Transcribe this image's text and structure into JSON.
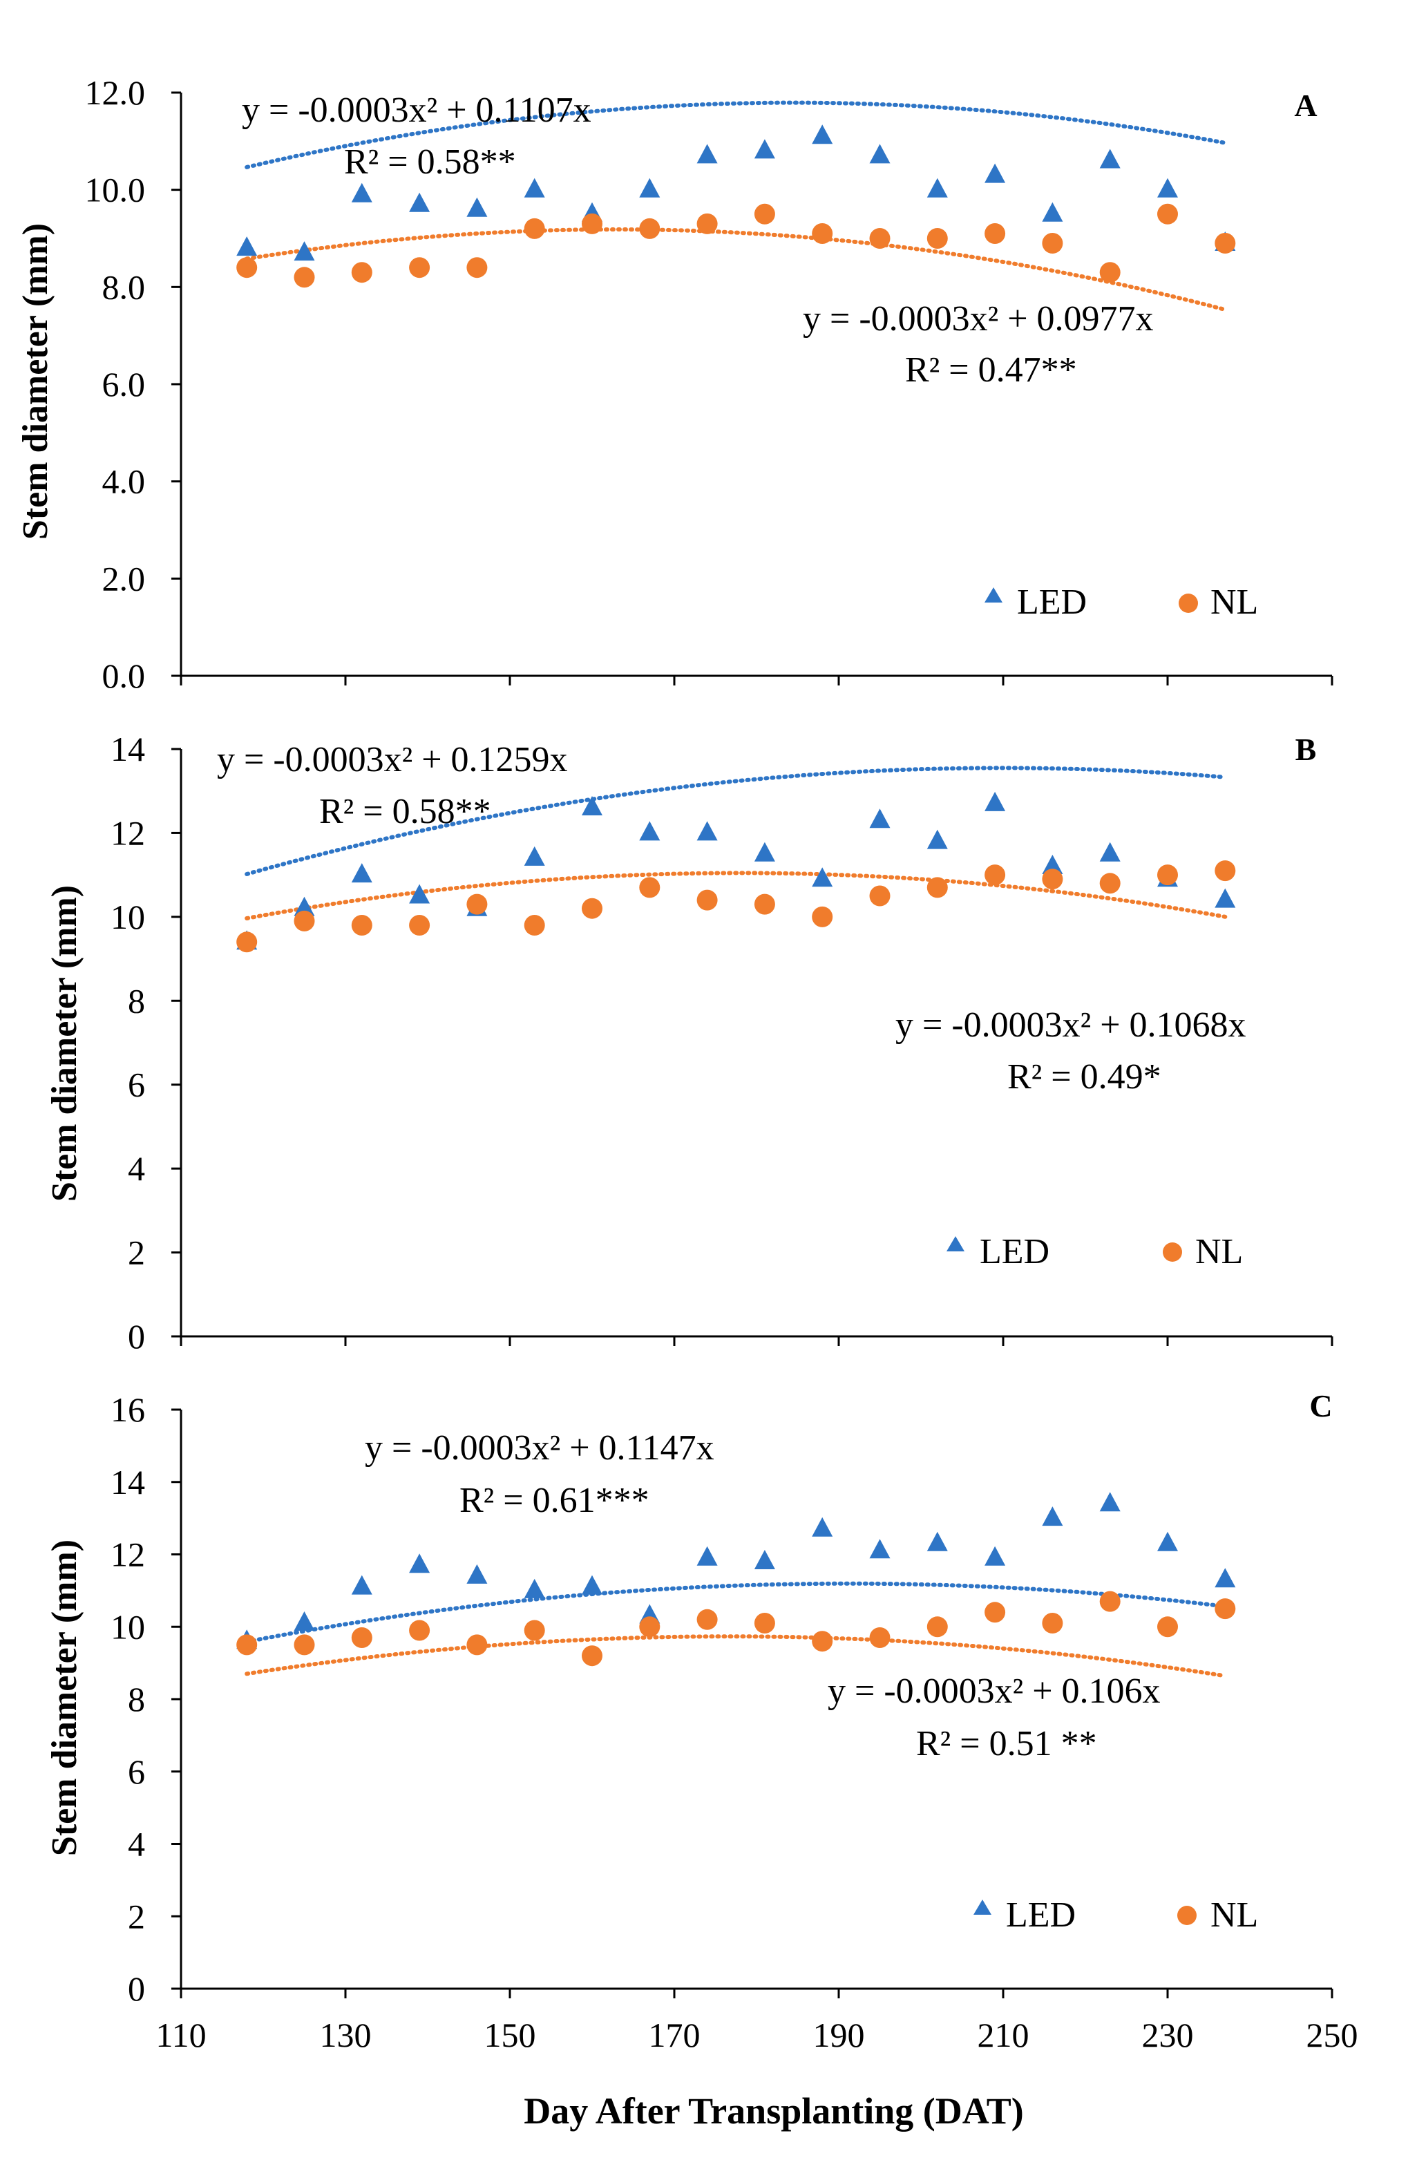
{
  "colors": {
    "led": "#2e75c6",
    "nl": "#f07c2c",
    "axis": "#000000"
  },
  "figure": {
    "xlabel": "Day After Transplanting (DAT)"
  },
  "chart_data": [
    {
      "type": "scatter",
      "panel": "A",
      "title": "",
      "xlabel": "",
      "ylabel": "Stem diameter (mm)",
      "xlim": [
        110,
        250
      ],
      "ylim": [
        0,
        12
      ],
      "yticks": [
        "0.0",
        "2.0",
        "4.0",
        "6.0",
        "8.0",
        "10.0",
        "12.0"
      ],
      "x": [
        118,
        125,
        132,
        139,
        146,
        153,
        160,
        167,
        174,
        181,
        188,
        195,
        202,
        209,
        216,
        223,
        230,
        237
      ],
      "series": [
        {
          "name": "LED",
          "marker": "triangle",
          "values": [
            8.8,
            8.7,
            9.9,
            9.7,
            9.6,
            10.0,
            9.5,
            10.0,
            10.7,
            10.8,
            11.1,
            10.7,
            10.0,
            10.3,
            9.5,
            10.6,
            10.0,
            8.9
          ],
          "trendline": {
            "a": -0.0003,
            "b": 0.1107,
            "c": 1.58,
            "equation": "y = -0.0003x² + 0.1107x",
            "r2": "R² = 0.58**"
          }
        },
        {
          "name": "NL",
          "marker": "circle",
          "values": [
            8.4,
            8.2,
            8.3,
            8.4,
            8.4,
            9.2,
            9.3,
            9.2,
            9.3,
            9.5,
            9.1,
            9.0,
            9.0,
            9.1,
            8.9,
            8.3,
            9.5,
            8.9
          ],
          "trendline": {
            "a": -0.0003,
            "b": 0.0977,
            "c": 1.23,
            "equation": "y = -0.0003x² + 0.0977x",
            "r2": "R² = 0.47**"
          }
        }
      ],
      "legend": [
        "LED",
        "NL"
      ]
    },
    {
      "type": "scatter",
      "panel": "B",
      "title": "",
      "xlabel": "",
      "ylabel": "Stem diameter (mm)",
      "xlim": [
        110,
        250
      ],
      "ylim": [
        0,
        14
      ],
      "yticks": [
        "0",
        "2",
        "4",
        "6",
        "8",
        "10",
        "12",
        "14"
      ],
      "x": [
        118,
        125,
        132,
        139,
        146,
        153,
        160,
        167,
        174,
        181,
        188,
        195,
        202,
        209,
        216,
        223,
        230,
        237
      ],
      "series": [
        {
          "name": "LED",
          "marker": "triangle",
          "values": [
            9.4,
            10.2,
            11.0,
            10.5,
            10.2,
            11.4,
            12.6,
            12.0,
            12.0,
            11.5,
            10.9,
            12.3,
            11.8,
            12.7,
            11.2,
            11.5,
            10.9,
            10.4
          ],
          "trendline": {
            "a": -0.0003,
            "b": 0.1259,
            "c": 0.34,
            "equation": "y = -0.0003x² + 0.1259x",
            "r2": "R² = 0.58**"
          }
        },
        {
          "name": "NL",
          "marker": "circle",
          "values": [
            9.4,
            9.9,
            9.8,
            9.8,
            10.3,
            9.8,
            10.2,
            10.7,
            10.4,
            10.3,
            10.0,
            10.5,
            10.7,
            11.0,
            10.9,
            10.8,
            11.0,
            11.1
          ],
          "trendline": {
            "a": -0.0003,
            "b": 0.1068,
            "c": 1.54,
            "equation": "y = -0.0003x² + 0.1068x",
            "r2": "R² = 0.49*"
          }
        }
      ],
      "legend": [
        "LED",
        "NL"
      ]
    },
    {
      "type": "scatter",
      "panel": "C",
      "title": "",
      "xlabel": "Day After Transplanting (DAT)",
      "ylabel": "Stem diameter (mm)",
      "xlim": [
        110,
        250
      ],
      "ylim": [
        0,
        16
      ],
      "yticks": [
        "0",
        "2",
        "4",
        "6",
        "8",
        "10",
        "12",
        "14",
        "16"
      ],
      "xticks": [
        "110",
        "130",
        "150",
        "170",
        "190",
        "210",
        "230",
        "250"
      ],
      "x": [
        118,
        125,
        132,
        139,
        146,
        153,
        160,
        167,
        174,
        181,
        188,
        195,
        202,
        209,
        216,
        223,
        230,
        237
      ],
      "series": [
        {
          "name": "LED",
          "marker": "triangle",
          "values": [
            9.6,
            10.1,
            11.1,
            11.7,
            11.4,
            11.0,
            11.1,
            10.3,
            11.9,
            11.8,
            12.7,
            12.1,
            12.3,
            11.9,
            13.0,
            13.4,
            12.3,
            11.3
          ],
          "trendline": {
            "a": -0.0003,
            "b": 0.1147,
            "c": 0.23,
            "equation": "y = -0.0003x² + 0.1147x",
            "r2": "R² = 0.61***"
          }
        },
        {
          "name": "NL",
          "marker": "circle",
          "values": [
            9.5,
            9.5,
            9.7,
            9.9,
            9.5,
            9.9,
            9.2,
            10.0,
            10.2,
            10.1,
            9.6,
            9.7,
            10.0,
            10.4,
            10.1,
            10.7,
            10.0,
            10.5
          ],
          "trendline": {
            "a": -0.0003,
            "b": 0.106,
            "c": 0.37,
            "equation": "y = -0.0003x² + 0.106x",
            "r2": "R² = 0.51 **"
          }
        }
      ],
      "legend": [
        "LED",
        "NL"
      ]
    }
  ]
}
